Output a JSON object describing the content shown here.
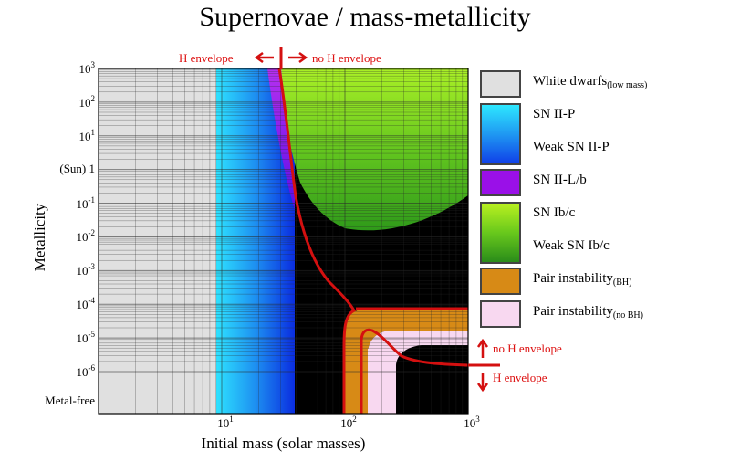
{
  "chart_data": {
    "type": "area",
    "title": "Supernovae / mass-metallicity",
    "xlabel": "Initial mass (solar masses)",
    "ylabel": "Metallicity",
    "x_scale": "log",
    "xlim": [
      1,
      1000
    ],
    "x_ticks": [
      {
        "value": 10,
        "base": "10",
        "exp": "1"
      },
      {
        "value": 100,
        "base": "10",
        "exp": "2"
      },
      {
        "value": 1000,
        "base": "10",
        "exp": "3"
      }
    ],
    "y_scale": "log",
    "y_ticks": [
      {
        "value": 1000,
        "base": "10",
        "exp": "3",
        "text": ""
      },
      {
        "value": 100,
        "base": "10",
        "exp": "2",
        "text": ""
      },
      {
        "value": 10,
        "base": "10",
        "exp": "1",
        "text": ""
      },
      {
        "value": 1,
        "base": "",
        "exp": "",
        "text": "(Sun)   1"
      },
      {
        "value": 0.1,
        "base": "10",
        "exp": "-1",
        "text": ""
      },
      {
        "value": 0.01,
        "base": "10",
        "exp": "-2",
        "text": ""
      },
      {
        "value": 0.001,
        "base": "10",
        "exp": "-3",
        "text": ""
      },
      {
        "value": 0.0001,
        "base": "10",
        "exp": "-4",
        "text": ""
      },
      {
        "value": 1e-05,
        "base": "10",
        "exp": "-5",
        "text": ""
      },
      {
        "value": 1e-06,
        "base": "10",
        "exp": "-6",
        "text": ""
      },
      {
        "value": 0,
        "base": "",
        "exp": "",
        "text": "Metal-free"
      }
    ],
    "legend_position": "right",
    "legend": [
      {
        "label": "White dwarfs",
        "sub": "(low mass)",
        "color": "#e0e0e0"
      },
      {
        "label": "SN II-P",
        "sub": "",
        "color": "#22d8f8"
      },
      {
        "label": "Weak SN II-P",
        "sub": "",
        "color": "#1040e8"
      },
      {
        "label": "SN II-L/b",
        "sub": "",
        "color": "#9a10e8"
      },
      {
        "label": "SN Ib/c",
        "sub": "",
        "color": "#b8f020"
      },
      {
        "label": "Weak SN Ib/c",
        "sub": "",
        "color": "#2a8c1a"
      },
      {
        "label": "Pair instability",
        "sub": "(BH)",
        "color": "#d78a16"
      },
      {
        "label": "Pair instability",
        "sub": "(no BH)",
        "color": "#f8d8f0"
      }
    ],
    "regions": [
      {
        "name": "White dwarfs (low mass)",
        "mass_range": [
          1,
          9
        ]
      },
      {
        "name": "SN II-P / Weak SN II-P",
        "mass_range": [
          9,
          40
        ]
      },
      {
        "name": "SN II-L/b",
        "mass_range": [
          25,
          40
        ],
        "metallicity_range": [
          0.1,
          1000
        ]
      },
      {
        "name": "SN Ib/c / Weak SN Ib/c",
        "mass_range": [
          40,
          1000
        ],
        "metallicity_range": [
          0.01,
          1000
        ]
      },
      {
        "name": "Pair instability (BH)",
        "mass_range": [
          100,
          140
        ]
      },
      {
        "name": "Pair instability (no BH)",
        "mass_range": [
          140,
          260
        ]
      }
    ],
    "annotations": {
      "top_left": "H envelope",
      "top_right": "no H envelope",
      "right_upper": "no H envelope",
      "right_lower": "H envelope"
    },
    "colors": {
      "black_hole": "#000000",
      "boundary": "#d41010",
      "grid": "#2a2a2a"
    }
  }
}
